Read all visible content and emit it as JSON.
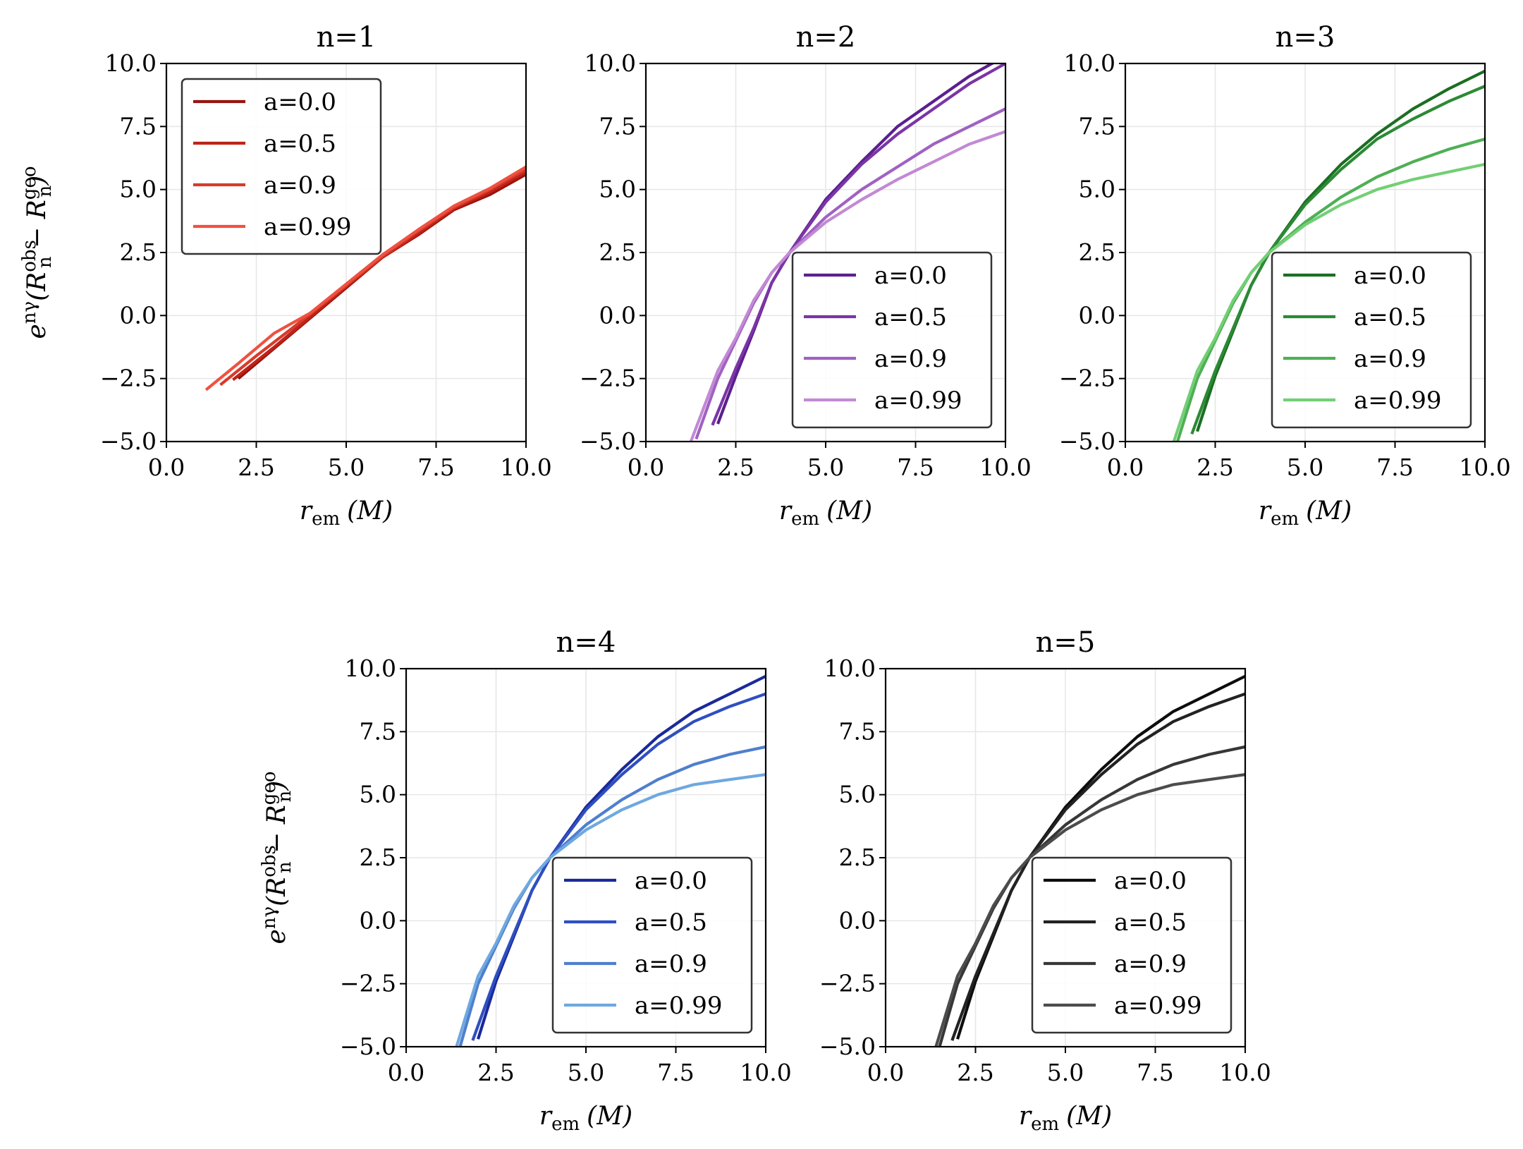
{
  "chart_data": [
    {
      "type": "line",
      "title": "n=1",
      "xlabel": {
        "main": "r",
        "sub": "em",
        "unit": "(M)"
      },
      "ylabel": {
        "main": "e",
        "sup": "nγ",
        "expr": "(R",
        "sup2": "obs",
        "sub2": "n",
        "minus": " − R",
        "sup3": "geo",
        "sub3": "n",
        "close": ")"
      },
      "xlim": [
        0,
        10
      ],
      "ylim": [
        -5,
        10
      ],
      "xticks": [
        "0.0",
        "2.5",
        "5.0",
        "7.5",
        "10.0"
      ],
      "yticks": [
        "−5.0",
        "−2.5",
        "0.0",
        "2.5",
        "5.0",
        "7.5",
        "10.0"
      ],
      "grid": true,
      "legend_position": "upper-left",
      "series": [
        {
          "name": "a=0.0",
          "color": "#99140f",
          "x": [
            2.0,
            3.0,
            4.0,
            5.0,
            6.0,
            7.0,
            8.0,
            9.0,
            10.0
          ],
          "y": [
            -2.5,
            -1.3,
            -0.1,
            1.1,
            2.3,
            3.2,
            4.2,
            4.8,
            5.6
          ]
        },
        {
          "name": "a=0.5",
          "color": "#be2318",
          "x": [
            1.85,
            3.0,
            4.0,
            5.0,
            6.0,
            7.0,
            8.0,
            9.0,
            10.0
          ],
          "y": [
            -2.55,
            -1.25,
            -0.05,
            1.15,
            2.3,
            3.25,
            4.25,
            4.9,
            5.7
          ]
        },
        {
          "name": "a=0.9",
          "color": "#d83a2b",
          "x": [
            1.5,
            2.5,
            3.5,
            5.0,
            6.0,
            7.0,
            8.0,
            9.0,
            10.0
          ],
          "y": [
            -2.75,
            -1.6,
            -0.5,
            1.2,
            2.35,
            3.35,
            4.3,
            5.0,
            5.8
          ]
        },
        {
          "name": "a=0.99",
          "color": "#ef5140",
          "x": [
            1.1,
            2.0,
            3.0,
            4.0,
            5.0,
            6.0,
            7.0,
            8.0,
            9.0,
            10.0
          ],
          "y": [
            -2.95,
            -1.9,
            -0.7,
            0.1,
            1.25,
            2.4,
            3.4,
            4.35,
            5.05,
            5.9
          ]
        }
      ]
    },
    {
      "type": "line",
      "title": "n=2",
      "xlabel": {
        "main": "r",
        "sub": "em",
        "unit": "(M)"
      },
      "ylabel": null,
      "xlim": [
        0,
        10
      ],
      "ylim": [
        -5,
        10
      ],
      "xticks": [
        "0.0",
        "2.5",
        "5.0",
        "7.5",
        "10.0"
      ],
      "yticks": [
        "−5.0",
        "−2.5",
        "0.0",
        "2.5",
        "5.0",
        "7.5",
        "10.0"
      ],
      "grid": true,
      "legend_position": "lower-right",
      "series": [
        {
          "name": "a=0.0",
          "color": "#5b1f8e",
          "x": [
            2.0,
            2.5,
            3.0,
            3.5,
            4.0,
            5.0,
            6.0,
            7.0,
            8.0,
            9.0,
            10.0
          ],
          "y": [
            -4.3,
            -2.4,
            -0.6,
            1.3,
            2.5,
            4.6,
            6.1,
            7.5,
            8.5,
            9.5,
            10.3
          ]
        },
        {
          "name": "a=0.5",
          "color": "#7b35a6",
          "x": [
            1.85,
            2.5,
            3.0,
            3.5,
            4.0,
            5.0,
            6.0,
            7.0,
            8.0,
            9.0,
            10.0
          ],
          "y": [
            -4.35,
            -2.1,
            -0.5,
            1.3,
            2.5,
            4.5,
            6.0,
            7.2,
            8.2,
            9.2,
            10.0
          ]
        },
        {
          "name": "a=0.9",
          "color": "#a062c2",
          "x": [
            1.4,
            2.0,
            2.5,
            3.0,
            3.5,
            4.0,
            5.0,
            6.0,
            7.0,
            8.0,
            9.0,
            10.0
          ],
          "y": [
            -4.9,
            -2.5,
            -1.0,
            0.5,
            1.7,
            2.5,
            3.9,
            5.0,
            5.9,
            6.8,
            7.5,
            8.2
          ]
        },
        {
          "name": "a=0.99",
          "color": "#c289d4",
          "x": [
            1.25,
            2.0,
            2.5,
            3.0,
            3.5,
            4.0,
            5.0,
            6.0,
            7.0,
            8.0,
            9.0,
            10.0
          ],
          "y": [
            -5.0,
            -2.2,
            -0.9,
            0.6,
            1.7,
            2.5,
            3.7,
            4.6,
            5.4,
            6.1,
            6.8,
            7.3
          ]
        }
      ]
    },
    {
      "type": "line",
      "title": "n=3",
      "xlabel": {
        "main": "r",
        "sub": "em",
        "unit": "(M)"
      },
      "ylabel": null,
      "xlim": [
        0,
        10
      ],
      "ylim": [
        -5,
        10
      ],
      "xticks": [
        "0.0",
        "2.5",
        "5.0",
        "7.5",
        "10.0"
      ],
      "yticks": [
        "−5.0",
        "−2.5",
        "0.0",
        "2.5",
        "5.0",
        "7.5",
        "10.0"
      ],
      "grid": true,
      "legend_position": "lower-right",
      "series": [
        {
          "name": "a=0.0",
          "color": "#1b6e22",
          "x": [
            2.0,
            2.5,
            3.0,
            3.5,
            4.0,
            5.0,
            6.0,
            7.0,
            8.0,
            9.0,
            10.0
          ],
          "y": [
            -4.6,
            -2.4,
            -0.6,
            1.2,
            2.5,
            4.5,
            6.0,
            7.2,
            8.2,
            9.0,
            9.7
          ]
        },
        {
          "name": "a=0.5",
          "color": "#2c8a35",
          "x": [
            1.85,
            2.5,
            3.0,
            3.5,
            4.0,
            5.0,
            6.0,
            7.0,
            8.0,
            9.0,
            10.0
          ],
          "y": [
            -4.7,
            -2.2,
            -0.5,
            1.2,
            2.5,
            4.4,
            5.8,
            7.0,
            7.8,
            8.5,
            9.1
          ]
        },
        {
          "name": "a=0.9",
          "color": "#4faf55",
          "x": [
            1.45,
            2.0,
            2.5,
            3.0,
            3.5,
            4.0,
            5.0,
            6.0,
            7.0,
            8.0,
            9.0,
            10.0
          ],
          "y": [
            -5.0,
            -2.5,
            -1.0,
            0.5,
            1.7,
            2.5,
            3.7,
            4.7,
            5.5,
            6.1,
            6.6,
            7.0
          ]
        },
        {
          "name": "a=0.99",
          "color": "#72cf74",
          "x": [
            1.35,
            2.0,
            2.5,
            3.0,
            3.5,
            4.0,
            5.0,
            6.0,
            7.0,
            8.0,
            9.0,
            10.0
          ],
          "y": [
            -5.0,
            -2.2,
            -0.9,
            0.6,
            1.7,
            2.5,
            3.6,
            4.4,
            5.0,
            5.4,
            5.7,
            6.0
          ]
        }
      ]
    },
    {
      "type": "line",
      "title": "n=4",
      "xlabel": {
        "main": "r",
        "sub": "em",
        "unit": "(M)"
      },
      "ylabel": {
        "main": "e",
        "sup": "nγ",
        "expr": "(R",
        "sup2": "obs",
        "sub2": "n",
        "minus": " − R",
        "sup3": "geo",
        "sub3": "n",
        "close": ")"
      },
      "xlim": [
        0,
        10
      ],
      "ylim": [
        -5,
        10
      ],
      "xticks": [
        "0.0",
        "2.5",
        "5.0",
        "7.5",
        "10.0"
      ],
      "yticks": [
        "−5.0",
        "−2.5",
        "0.0",
        "2.5",
        "5.0",
        "7.5",
        "10.0"
      ],
      "grid": true,
      "legend_position": "lower-right",
      "series": [
        {
          "name": "a=0.0",
          "color": "#1a2a99",
          "x": [
            2.0,
            2.5,
            3.0,
            3.5,
            4.0,
            5.0,
            6.0,
            7.0,
            8.0,
            9.0,
            10.0
          ],
          "y": [
            -4.7,
            -2.4,
            -0.6,
            1.2,
            2.5,
            4.5,
            6.0,
            7.3,
            8.3,
            9.0,
            9.7
          ]
        },
        {
          "name": "a=0.5",
          "color": "#2f4fc0",
          "x": [
            1.85,
            2.5,
            3.0,
            3.5,
            4.0,
            5.0,
            6.0,
            7.0,
            8.0,
            9.0,
            10.0
          ],
          "y": [
            -4.75,
            -2.2,
            -0.5,
            1.2,
            2.5,
            4.4,
            5.8,
            7.0,
            7.9,
            8.5,
            9.0
          ]
        },
        {
          "name": "a=0.9",
          "color": "#4f7fcd",
          "x": [
            1.5,
            2.0,
            2.5,
            3.0,
            3.5,
            4.0,
            5.0,
            6.0,
            7.0,
            8.0,
            9.0,
            10.0
          ],
          "y": [
            -5.0,
            -2.5,
            -1.0,
            0.5,
            1.7,
            2.5,
            3.8,
            4.8,
            5.6,
            6.2,
            6.6,
            6.9
          ]
        },
        {
          "name": "a=0.99",
          "color": "#6ea8e0",
          "x": [
            1.4,
            2.0,
            2.5,
            3.0,
            3.5,
            4.0,
            5.0,
            6.0,
            7.0,
            8.0,
            9.0,
            10.0
          ],
          "y": [
            -5.0,
            -2.2,
            -0.9,
            0.6,
            1.7,
            2.5,
            3.6,
            4.4,
            5.0,
            5.4,
            5.6,
            5.8
          ]
        }
      ]
    },
    {
      "type": "line",
      "title": "n=5",
      "xlabel": {
        "main": "r",
        "sub": "em",
        "unit": "(M)"
      },
      "ylabel": null,
      "xlim": [
        0,
        10
      ],
      "ylim": [
        -5,
        10
      ],
      "xticks": [
        "0.0",
        "2.5",
        "5.0",
        "7.5",
        "10.0"
      ],
      "yticks": [
        "−5.0",
        "−2.5",
        "0.0",
        "2.5",
        "5.0",
        "7.5",
        "10.0"
      ],
      "grid": true,
      "legend_position": "lower-right",
      "series": [
        {
          "name": "a=0.0",
          "color": "#0d0d0d",
          "x": [
            2.0,
            2.5,
            3.0,
            3.5,
            4.0,
            5.0,
            6.0,
            7.0,
            8.0,
            9.0,
            10.0
          ],
          "y": [
            -4.7,
            -2.4,
            -0.6,
            1.2,
            2.5,
            4.5,
            6.0,
            7.3,
            8.3,
            9.0,
            9.7
          ]
        },
        {
          "name": "a=0.5",
          "color": "#222222",
          "x": [
            1.85,
            2.5,
            3.0,
            3.5,
            4.0,
            5.0,
            6.0,
            7.0,
            8.0,
            9.0,
            10.0
          ],
          "y": [
            -4.75,
            -2.2,
            -0.5,
            1.2,
            2.5,
            4.4,
            5.8,
            7.0,
            7.9,
            8.5,
            9.0
          ]
        },
        {
          "name": "a=0.9",
          "color": "#373737",
          "x": [
            1.5,
            2.0,
            2.5,
            3.0,
            3.5,
            4.0,
            5.0,
            6.0,
            7.0,
            8.0,
            9.0,
            10.0
          ],
          "y": [
            -5.0,
            -2.5,
            -1.0,
            0.5,
            1.7,
            2.5,
            3.8,
            4.8,
            5.6,
            6.2,
            6.6,
            6.9
          ]
        },
        {
          "name": "a=0.99",
          "color": "#4c4c4c",
          "x": [
            1.4,
            2.0,
            2.5,
            3.0,
            3.5,
            4.0,
            5.0,
            6.0,
            7.0,
            8.0,
            9.0,
            10.0
          ],
          "y": [
            -5.0,
            -2.2,
            -0.9,
            0.6,
            1.7,
            2.5,
            3.6,
            4.4,
            5.0,
            5.4,
            5.6,
            5.8
          ]
        }
      ]
    }
  ]
}
